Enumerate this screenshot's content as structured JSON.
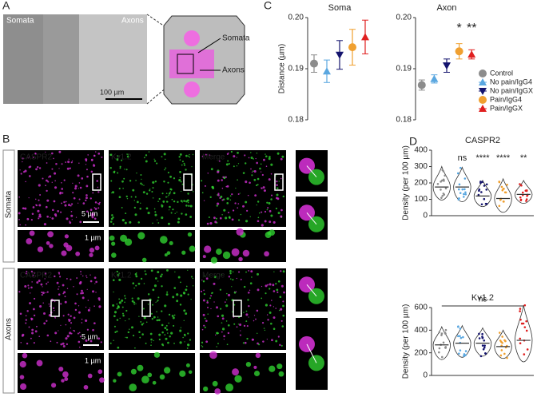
{
  "panel_labels": [
    "A",
    "B",
    "C",
    "D"
  ],
  "panel_a": {
    "left": "Somata",
    "right": "Axons",
    "scale": "100 µm",
    "schematic_top": "Somata",
    "schematic_bottom": "Axons"
  },
  "panel_b": {
    "rows": [
      "Somata",
      "Axons"
    ],
    "columns": [
      "CASPR2",
      "Kv1.2",
      "Merge"
    ],
    "scale_large": "5 µm",
    "scale_small": "1 µm"
  },
  "chart_data": [
    {
      "type": "errorbar",
      "title": "Soma",
      "ylabel": "Distance (µm)",
      "ylim": [
        0.18,
        0.2
      ],
      "yticks": [
        0.18,
        0.19,
        {
          "value": 0.2,
          "label": "0.20"
        }
      ],
      "colors": [
        "#8c8c8c",
        "#5aa7e0",
        "#14146e",
        "#f0a030",
        "#e01f1f"
      ],
      "markers": [
        "circle",
        "triangle-up",
        "triangle-down",
        "circle",
        "triangle-up"
      ],
      "values": [
        0.191,
        0.1895,
        0.1927,
        0.1942,
        0.1962
      ],
      "errors": [
        0.0017,
        0.0022,
        0.0028,
        0.0035,
        0.0033
      ]
    },
    {
      "type": "errorbar",
      "title": "Axon",
      "ylim": [
        0.18,
        0.2
      ],
      "yticks": [
        0.18,
        0.19,
        {
          "value": 0.2,
          "label": "0.20"
        }
      ],
      "colors": [
        "#8c8c8c",
        "#5aa7e0",
        "#14146e",
        "#f0a030",
        "#e01f1f"
      ],
      "markers": [
        "circle",
        "triangle-up",
        "triangle-down",
        "circle",
        "triangle-up"
      ],
      "values": [
        0.1868,
        0.188,
        0.1906,
        0.1934,
        0.1928
      ],
      "errors": [
        0.001,
        0.0008,
        0.0013,
        0.0015,
        0.0009
      ],
      "legend": [
        "Control",
        "No pain/IgG4",
        "No pain/IgGX",
        "Pain/IgG4",
        "Pain/IgGX"
      ],
      "annotations": [
        {
          "text": "*",
          "color": "#f0a030"
        },
        {
          "text": "**",
          "color": "#e01f1f"
        }
      ]
    },
    {
      "type": "violin",
      "title": "CASPR2",
      "ylabel": "Density (per 100 µm)",
      "ylim": [
        0,
        400
      ],
      "yticks": [
        0,
        100,
        200,
        300,
        400
      ],
      "colors": [
        "#8c8c8c",
        "#5aa7e0",
        "#14146e",
        "#f0a030",
        "#e01f1f"
      ],
      "medians": [
        175,
        175,
        120,
        105,
        130
      ],
      "mins": [
        95,
        85,
        55,
        20,
        75
      ],
      "maxs": [
        300,
        295,
        215,
        225,
        215
      ],
      "annotations": [
        {
          "text": "ns",
          "color": "#5aa7e0"
        },
        {
          "text": "****",
          "color": "#14146e"
        },
        {
          "text": "****",
          "color": "#f0a030"
        },
        {
          "text": "**",
          "color": "#e01f1f"
        }
      ]
    },
    {
      "type": "violin",
      "title": "Kv1.2",
      "ylabel": "Density (per 100 µm)",
      "ylim": [
        0,
        600
      ],
      "yticks": [
        0,
        200,
        400,
        600
      ],
      "colors": [
        "#8c8c8c",
        "#5aa7e0",
        "#14146e",
        "#f0a030",
        "#e01f1f"
      ],
      "medians": [
        270,
        285,
        285,
        255,
        310
      ],
      "mins": [
        140,
        160,
        170,
        150,
        120
      ],
      "maxs": [
        430,
        440,
        420,
        400,
        620
      ],
      "bracket": "ns"
    }
  ]
}
